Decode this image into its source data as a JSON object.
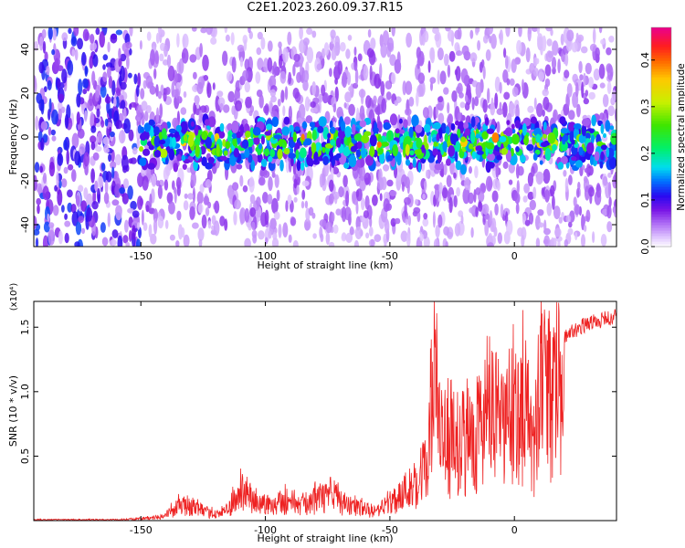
{
  "title": "C2E1.2023.260.09.37.R15",
  "chart_data": [
    {
      "type": "heatmap",
      "xlabel": "Height of straight line (km)",
      "ylabel": "Frequency (Hz)",
      "xlim": [
        -193,
        41
      ],
      "ylim": [
        -50,
        50
      ],
      "x_ticks": [
        -150,
        -100,
        -50,
        0
      ],
      "y_ticks": [
        -40,
        -20,
        0,
        20,
        40
      ],
      "colorbar": {
        "label": "Normalized spectral amplitude",
        "range": [
          0.0,
          0.47
        ],
        "ticks": [
          "0.0",
          "0.1",
          "0.2",
          "0.3",
          "0.4"
        ],
        "colormap": "rainbow (white-violet-blue-cyan-green-yellow-orange-red-magenta)"
      },
      "description_band": {
        "center_frequency_hz": [
          -6,
          0
        ],
        "strong_region_x": [
          -150,
          41
        ]
      }
    },
    {
      "type": "line",
      "xlabel": "Height of straight line (km)",
      "ylabel": "SNR (10 * v/v)",
      "y_multiplier": "(x10⁴)",
      "xlim": [
        -193,
        41
      ],
      "ylim": [
        0,
        1.7
      ],
      "x_ticks": [
        -150,
        -100,
        -50,
        0
      ],
      "y_ticks": [
        "0.5",
        "1.0",
        "1.5"
      ],
      "series": [
        {
          "color": "#ee2222",
          "x": [
            -193,
            -180,
            -160,
            -150,
            -145,
            -140,
            -135,
            -130,
            -125,
            -120,
            -115,
            -110,
            -108,
            -105,
            -100,
            -95,
            -90,
            -85,
            -80,
            -75,
            -72,
            -70,
            -65,
            -60,
            -55,
            -50,
            -45,
            -40,
            -35,
            -32,
            -30,
            -25,
            -20,
            -15,
            -10,
            -5,
            0,
            5,
            8,
            10,
            12,
            15,
            20,
            25,
            30,
            35,
            41
          ],
          "y": [
            0.01,
            0.01,
            0.01,
            0.02,
            0.03,
            0.06,
            0.15,
            0.17,
            0.1,
            0.07,
            0.12,
            0.3,
            0.33,
            0.2,
            0.18,
            0.2,
            0.22,
            0.18,
            0.22,
            0.25,
            0.28,
            0.2,
            0.15,
            0.12,
            0.1,
            0.2,
            0.3,
            0.4,
            0.6,
            1.7,
            0.9,
            0.8,
            0.9,
            1.0,
            1.2,
            1.0,
            1.3,
            1.2,
            0.6,
            1.5,
            1.3,
            1.4,
            1.45,
            1.5,
            1.55,
            1.57,
            1.6
          ]
        }
      ]
    }
  ]
}
